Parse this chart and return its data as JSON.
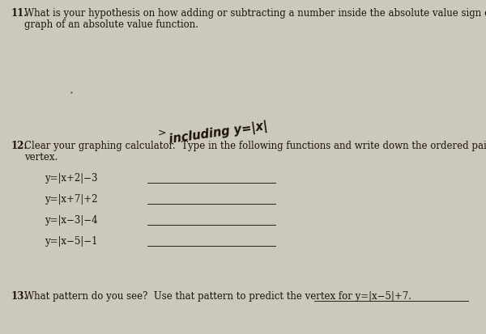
{
  "background_color": "#cdc8bc",
  "text_color": "#1a1208",
  "q11_number": "11.",
  "q11_text_line1": "What is your hypothesis on how adding or subtracting a number inside the absolute value sign effects the",
  "q11_text_line2": "graph of an absolute value function.",
  "handwritten_text": "including y=|x|",
  "handwritten_arrow": "‣",
  "q12_number": "12.",
  "q12_text_line1": "Clear your graphing calculator.  Type in the following functions and write down the ordered pair for each",
  "q12_text_line2": "vertex.",
  "eq1": "y=|x+2|−3",
  "eq2": "y=|x+7|+2",
  "eq3": "y=|x−3|−4",
  "eq4": "y=|x−5|−1",
  "q13_number": "13.",
  "q13_text": "What pattern do you see?  Use that pattern to predict the vertex for ",
  "q13_eq": "y=|x−5|+7.",
  "line_color": "#2a2010",
  "eq_font_size": 8.5,
  "main_font_size": 8.5,
  "hw_font_size": 10.5
}
